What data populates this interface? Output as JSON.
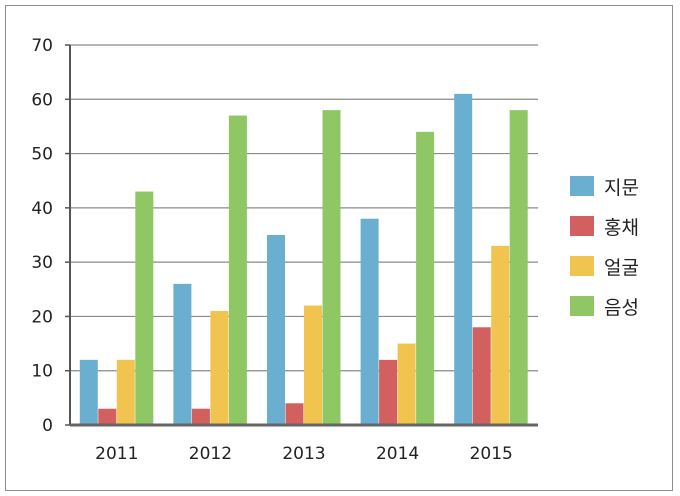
{
  "chart_data": {
    "type": "bar",
    "categories": [
      "2011",
      "2012",
      "2013",
      "2014",
      "2015"
    ],
    "series": [
      {
        "name": "지문",
        "values": [
          12,
          26,
          35,
          38,
          61
        ],
        "color": "#6aaed0"
      },
      {
        "name": "홍채",
        "values": [
          3,
          3,
          4,
          12,
          18
        ],
        "color": "#d2605e"
      },
      {
        "name": "얼굴",
        "values": [
          12,
          21,
          22,
          15,
          33
        ],
        "color": "#f0c44e"
      },
      {
        "name": "음성",
        "values": [
          43,
          57,
          58,
          54,
          58
        ],
        "color": "#8fc764"
      }
    ],
    "ylim": [
      0,
      70
    ],
    "yticks": [
      "0",
      "10",
      "20",
      "30",
      "40",
      "50",
      "60",
      "70"
    ],
    "grid": true,
    "legend": "right",
    "title": "",
    "xlabel": "",
    "ylabel": ""
  }
}
